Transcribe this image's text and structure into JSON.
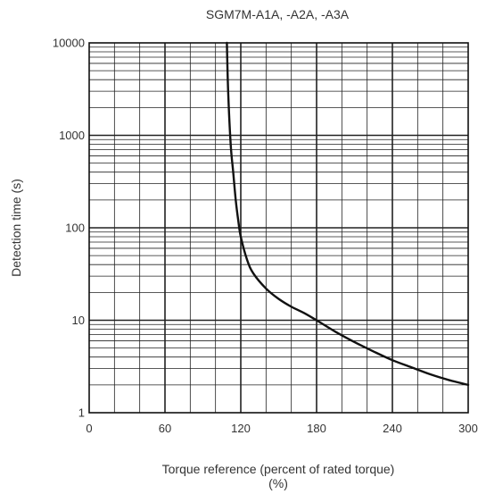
{
  "chart_data": {
    "type": "line",
    "title": "SGM7M-A1A, -A2A, -A3A",
    "xlabel_line1": "Torque reference (percent of rated torque)",
    "xlabel_line2": "(%)",
    "ylabel": "Detection time (s)",
    "x_axis": {
      "min": 0,
      "max": 300,
      "scale": "linear",
      "tick_labels": [
        "0",
        "60",
        "120",
        "180",
        "240",
        "300"
      ],
      "minor_step": 20
    },
    "y_axis": {
      "min": 1,
      "max": 10000,
      "scale": "log",
      "tick_labels": [
        "1",
        "10",
        "100",
        "1000",
        "10000"
      ]
    },
    "grid": true,
    "series": [
      {
        "x": [
          109,
          110,
          112,
          114,
          116,
          118,
          120,
          125,
          130,
          140,
          150,
          160,
          170,
          180,
          195,
          210,
          225,
          240,
          255,
          270,
          285,
          300
        ],
        "y": [
          10000,
          3000,
          800,
          400,
          200,
          120,
          80,
          45,
          32,
          22,
          17,
          14,
          12,
          10,
          7.5,
          5.8,
          4.6,
          3.7,
          3.1,
          2.6,
          2.25,
          2
        ]
      }
    ],
    "colors": {
      "line": "#111111",
      "grid": "#222222",
      "text": "#333333"
    }
  }
}
